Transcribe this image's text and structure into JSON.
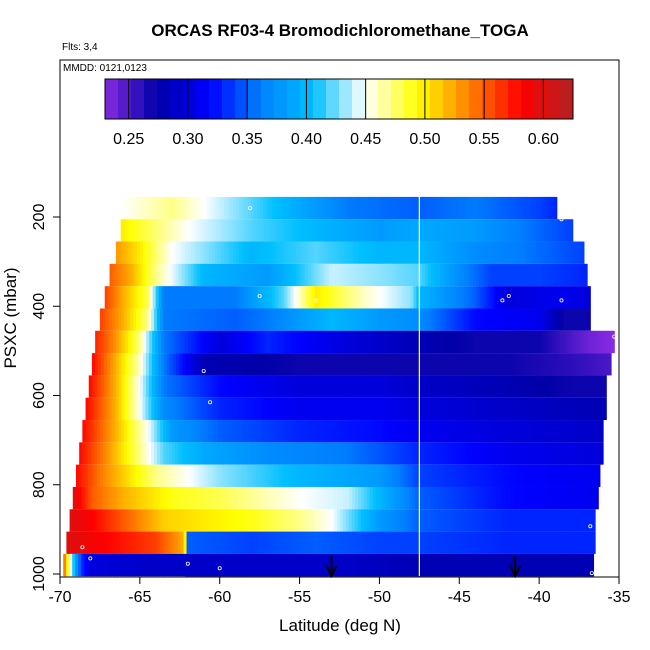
{
  "chart_data": {
    "type": "heatmap",
    "title": "ORCAS RF03-4 Bromodichloromethane_TOGA",
    "flights_label": "Flts: 3,4",
    "date_label": "MMDD: 0121,0123",
    "xlabel": "Latitude (deg N)",
    "ylabel": "PSXC (mbar)",
    "xlim": [
      -70,
      -35
    ],
    "ylim": [
      1000,
      0
    ],
    "x_ticks": [
      -70,
      -65,
      -60,
      -55,
      -50,
      -45,
      -40,
      -35
    ],
    "y_ticks": [
      200,
      400,
      600,
      800,
      1000
    ],
    "colorbar": {
      "min": 0.23,
      "max": 0.625,
      "ticks": [
        0.25,
        0.3,
        0.35,
        0.4,
        0.45,
        0.5,
        0.55,
        0.6
      ],
      "tick_labels": [
        "0.25",
        "0.30",
        "0.35",
        "0.40",
        "0.45",
        "0.50",
        "0.55",
        "0.60"
      ],
      "colors": [
        "#8a2be2",
        "#0000a8",
        "#0000ff",
        "#0080ff",
        "#00bfff",
        "#ffffff",
        "#ffff00",
        "#ff8000",
        "#ff0000",
        "#b22222"
      ]
    },
    "vertical_line_lat": -47.5,
    "arrows_lat": [
      -53,
      -41.5
    ],
    "rows": [
      {
        "p": 180,
        "x0": -66.1,
        "x1": -38.9,
        "stops": [
          [
            -66.1,
            0.45
          ],
          [
            -63,
            0.47
          ],
          [
            -58,
            0.42
          ],
          [
            -52,
            0.36
          ],
          [
            -47.5,
            0.35
          ],
          [
            -44,
            0.36
          ],
          [
            -40,
            0.34
          ],
          [
            -38.9,
            0.33
          ]
        ]
      },
      {
        "p": 230,
        "x0": -66.2,
        "x1": -37.9,
        "stops": [
          [
            -66.2,
            0.5
          ],
          [
            -64.5,
            0.48
          ],
          [
            -62,
            0.45
          ],
          [
            -58,
            0.42
          ],
          [
            -54,
            0.4
          ],
          [
            -50,
            0.38
          ],
          [
            -47.5,
            0.39
          ],
          [
            -44,
            0.38
          ],
          [
            -41,
            0.36
          ],
          [
            -38,
            0.34
          ]
        ]
      },
      {
        "p": 280,
        "x0": -66.5,
        "x1": -37.2,
        "stops": [
          [
            -66.5,
            0.53
          ],
          [
            -65,
            0.5
          ],
          [
            -63,
            0.45
          ],
          [
            -58,
            0.4
          ],
          [
            -54,
            0.42
          ],
          [
            -50,
            0.4
          ],
          [
            -47.5,
            0.4
          ],
          [
            -44,
            0.37
          ],
          [
            -41,
            0.36
          ],
          [
            -37.2,
            0.34
          ]
        ]
      },
      {
        "p": 330,
        "x0": -66.9,
        "x1": -37.0,
        "stops": [
          [
            -66.9,
            0.55
          ],
          [
            -65.5,
            0.52
          ],
          [
            -64,
            0.47
          ],
          [
            -61,
            0.4
          ],
          [
            -57,
            0.38
          ],
          [
            -53,
            0.44
          ],
          [
            -50,
            0.43
          ],
          [
            -47.5,
            0.42
          ],
          [
            -45,
            0.37
          ],
          [
            -43,
            0.34
          ],
          [
            -40,
            0.34
          ],
          [
            -37,
            0.33
          ]
        ]
      },
      {
        "p": 380,
        "x0": -67.2,
        "x1": -36.8,
        "stops": [
          [
            -67.2,
            0.56
          ],
          [
            -66,
            0.52
          ],
          [
            -64.5,
            0.48
          ],
          [
            -63.5,
            0.36
          ],
          [
            -59,
            0.36
          ],
          [
            -56,
            0.42
          ],
          [
            -54,
            0.5
          ],
          [
            -51,
            0.46
          ],
          [
            -48,
            0.43
          ],
          [
            -47.5,
            0.4
          ],
          [
            -44,
            0.35
          ],
          [
            -42,
            0.3
          ],
          [
            -38.5,
            0.31
          ],
          [
            -36.8,
            0.3
          ]
        ]
      },
      {
        "p": 430,
        "x0": -67.5,
        "x1": -36.8,
        "stops": [
          [
            -67.5,
            0.56
          ],
          [
            -66,
            0.52
          ],
          [
            -64.5,
            0.47
          ],
          [
            -63.5,
            0.36
          ],
          [
            -59,
            0.35
          ],
          [
            -57,
            0.36
          ],
          [
            -53,
            0.4
          ],
          [
            -50,
            0.38
          ],
          [
            -47.5,
            0.37
          ],
          [
            -44,
            0.32
          ],
          [
            -40,
            0.31
          ],
          [
            -38.5,
            0.27
          ],
          [
            -36.8,
            0.27
          ]
        ]
      },
      {
        "p": 480,
        "x0": -67.8,
        "x1": -35.3,
        "stops": [
          [
            -67.8,
            0.57
          ],
          [
            -66.5,
            0.53
          ],
          [
            -65,
            0.47
          ],
          [
            -63.5,
            0.36
          ],
          [
            -60,
            0.3
          ],
          [
            -57,
            0.33
          ],
          [
            -52,
            0.3
          ],
          [
            -47.5,
            0.28
          ],
          [
            -44,
            0.27
          ],
          [
            -40,
            0.27
          ],
          [
            -37,
            0.24
          ],
          [
            -35.3,
            0.23
          ]
        ]
      },
      {
        "p": 530,
        "x0": -68.0,
        "x1": -35.5,
        "stops": [
          [
            -68,
            0.58
          ],
          [
            -66.5,
            0.52
          ],
          [
            -65,
            0.46
          ],
          [
            -63.5,
            0.36
          ],
          [
            -61,
            0.28
          ],
          [
            -55,
            0.27
          ],
          [
            -47.5,
            0.27
          ],
          [
            -42,
            0.27
          ],
          [
            -38,
            0.26
          ],
          [
            -35.5,
            0.25
          ]
        ]
      },
      {
        "p": 580,
        "x0": -68.2,
        "x1": -35.8,
        "stops": [
          [
            -68.2,
            0.58
          ],
          [
            -66.5,
            0.52
          ],
          [
            -65,
            0.45
          ],
          [
            -63.5,
            0.36
          ],
          [
            -60,
            0.32
          ],
          [
            -55,
            0.3
          ],
          [
            -50,
            0.3
          ],
          [
            -47.5,
            0.29
          ],
          [
            -42,
            0.28
          ],
          [
            -38,
            0.27
          ],
          [
            -35.8,
            0.27
          ]
        ]
      },
      {
        "p": 630,
        "x0": -68.4,
        "x1": -35.8,
        "stops": [
          [
            -68.4,
            0.58
          ],
          [
            -66.5,
            0.52
          ],
          [
            -65,
            0.45
          ],
          [
            -63.5,
            0.37
          ],
          [
            -60,
            0.33
          ],
          [
            -55,
            0.31
          ],
          [
            -50,
            0.31
          ],
          [
            -47.5,
            0.3
          ],
          [
            -42,
            0.29
          ],
          [
            -36,
            0.28
          ]
        ]
      },
      {
        "p": 680,
        "x0": -68.6,
        "x1": -36.0,
        "stops": [
          [
            -68.6,
            0.58
          ],
          [
            -66.5,
            0.52
          ],
          [
            -64.5,
            0.45
          ],
          [
            -63,
            0.38
          ],
          [
            -60,
            0.35
          ],
          [
            -55,
            0.33
          ],
          [
            -50,
            0.32
          ],
          [
            -47.5,
            0.31
          ],
          [
            -42,
            0.3
          ],
          [
            -36,
            0.29
          ]
        ]
      },
      {
        "p": 730,
        "x0": -68.8,
        "x1": -36.0,
        "stops": [
          [
            -68.8,
            0.58
          ],
          [
            -67,
            0.53
          ],
          [
            -65,
            0.47
          ],
          [
            -63.5,
            0.42
          ],
          [
            -61,
            0.39
          ],
          [
            -57,
            0.37
          ],
          [
            -52,
            0.36
          ],
          [
            -47.5,
            0.33
          ],
          [
            -42,
            0.31
          ],
          [
            -36,
            0.3
          ]
        ]
      },
      {
        "p": 780,
        "x0": -69.0,
        "x1": -36.2,
        "stops": [
          [
            -69,
            0.58
          ],
          [
            -67.5,
            0.54
          ],
          [
            -65.5,
            0.5
          ],
          [
            -64,
            0.47
          ],
          [
            -60,
            0.43
          ],
          [
            -55,
            0.4
          ],
          [
            -50,
            0.38
          ],
          [
            -47.5,
            0.34
          ],
          [
            -42,
            0.32
          ],
          [
            -36.2,
            0.31
          ]
        ]
      },
      {
        "p": 830,
        "x0": -69.2,
        "x1": -36.3,
        "stops": [
          [
            -69.2,
            0.6
          ],
          [
            -68,
            0.55
          ],
          [
            -66,
            0.52
          ],
          [
            -63,
            0.49
          ],
          [
            -60,
            0.48
          ],
          [
            -55,
            0.45
          ],
          [
            -52,
            0.44
          ],
          [
            -50,
            0.4
          ],
          [
            -47.5,
            0.35
          ],
          [
            -42,
            0.32
          ],
          [
            -36.3,
            0.31
          ]
        ]
      },
      {
        "p": 880,
        "x0": -69.4,
        "x1": -36.5,
        "stops": [
          [
            -69.4,
            0.6
          ],
          [
            -68.5,
            0.59
          ],
          [
            -66,
            0.55
          ],
          [
            -63.5,
            0.51
          ],
          [
            -61,
            0.5
          ],
          [
            -58,
            0.49
          ],
          [
            -55,
            0.47
          ],
          [
            -53,
            0.45
          ],
          [
            -50,
            0.38
          ],
          [
            -47.5,
            0.35
          ],
          [
            -42,
            0.33
          ],
          [
            -36.5,
            0.33
          ]
        ]
      },
      {
        "p": 930,
        "x0": -69.6,
        "x1": -36.5,
        "stops": [
          [
            -69.6,
            0.6
          ],
          [
            -67,
            0.58
          ],
          [
            -64,
            0.56
          ],
          [
            -62.2,
            0.52
          ],
          [
            -62,
            0.35
          ],
          [
            -58,
            0.34
          ],
          [
            -54,
            0.35
          ],
          [
            -50,
            0.34
          ],
          [
            -47.5,
            0.34
          ],
          [
            -42,
            0.33
          ],
          [
            -36.5,
            0.33
          ]
        ]
      },
      {
        "p": 980,
        "x0": -69.8,
        "x1": -36.6,
        "stops": [
          [
            -69.8,
            0.56
          ],
          [
            -69.4,
            0.46
          ],
          [
            -69.0,
            0.38
          ],
          [
            -68.6,
            0.33
          ],
          [
            -68,
            0.3
          ],
          [
            -64,
            0.29
          ],
          [
            -58,
            0.29
          ],
          [
            -52,
            0.29
          ],
          [
            -47.5,
            0.28
          ],
          [
            -42,
            0.28
          ],
          [
            -36.6,
            0.28
          ]
        ]
      },
      {
        "p": 1030,
        "x0": -62.2,
        "x1": -36.6,
        "stops": [
          [
            -62.2,
            0.29
          ],
          [
            -55,
            0.28
          ],
          [
            -47.5,
            0.28
          ],
          [
            -40,
            0.28
          ],
          [
            -36.6,
            0.28
          ]
        ]
      }
    ],
    "sample_points": [
      [
        -65.9,
        180
      ],
      [
        -58.1,
        180
      ],
      [
        -38.6,
        205
      ],
      [
        -57.5,
        377
      ],
      [
        -54,
        387
      ],
      [
        -41.9,
        377
      ],
      [
        -42.3,
        387
      ],
      [
        -38.6,
        387
      ],
      [
        -35.3,
        468
      ],
      [
        -61,
        545
      ],
      [
        -60.6,
        615
      ],
      [
        -68.6,
        940
      ],
      [
        -68.1,
        965
      ],
      [
        -62.0,
        977
      ],
      [
        -60.0,
        987
      ],
      [
        -36.8,
        893
      ],
      [
        -36.7,
        998
      ]
    ]
  }
}
